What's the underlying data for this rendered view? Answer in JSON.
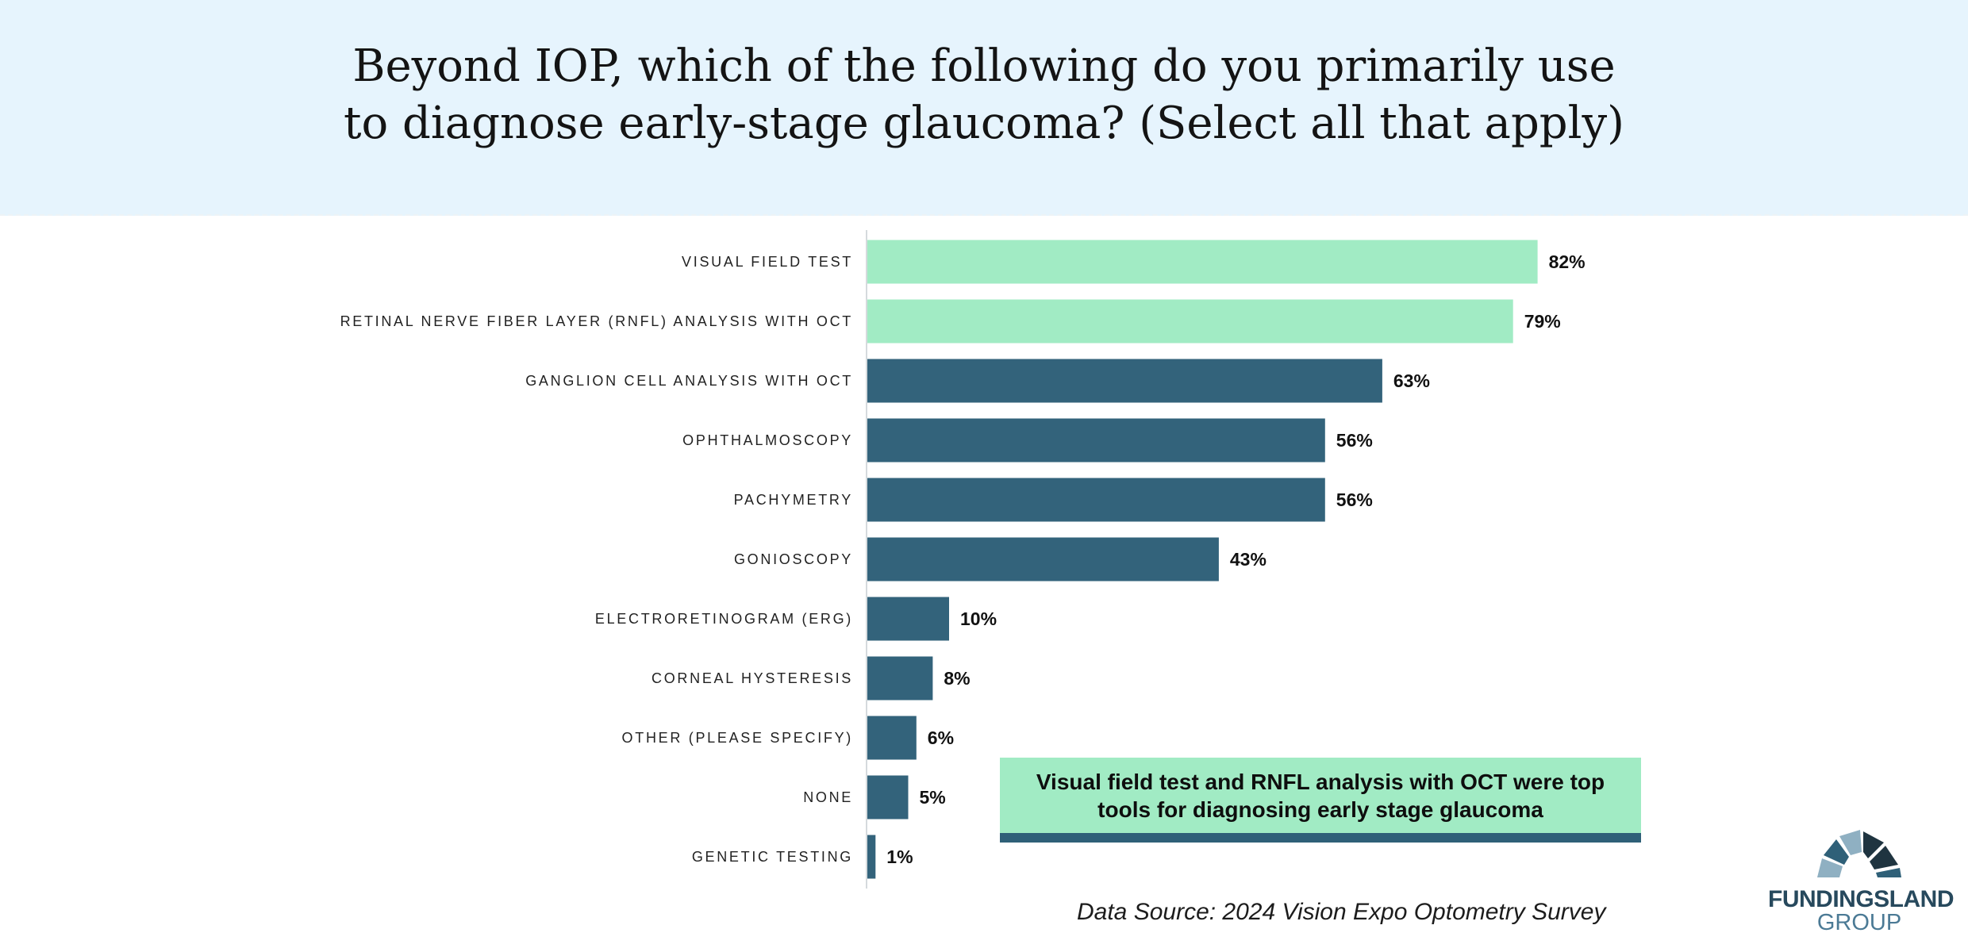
{
  "header": {
    "title_line1": "Beyond IOP, which of the following do you primarily use",
    "title_line2": "to diagnose early-stage glaucoma? (Select all that apply)"
  },
  "chart_data": {
    "type": "bar",
    "orientation": "horizontal",
    "categories": [
      "VISUAL FIELD TEST",
      "RETINAL NERVE FIBER LAYER (RNFL) ANALYSIS WITH OCT",
      "GANGLION CELL ANALYSIS WITH OCT",
      "OPHTHALMOSCOPY",
      "PACHYMETRY",
      "GONIOSCOPY",
      "ELECTRORETINOGRAM (ERG)",
      "CORNEAL HYSTERESIS",
      "OTHER (PLEASE SPECIFY)",
      "NONE",
      "GENETIC TESTING"
    ],
    "values": [
      82,
      79,
      63,
      56,
      56,
      43,
      10,
      8,
      6,
      5,
      1
    ],
    "value_labels": [
      "82%",
      "79%",
      "63%",
      "56%",
      "56%",
      "43%",
      "10%",
      "8%",
      "6%",
      "5%",
      "1%"
    ],
    "highlighted": [
      true,
      true,
      false,
      false,
      false,
      false,
      false,
      false,
      false,
      false,
      false
    ],
    "xlim": [
      0,
      100
    ],
    "grid": false,
    "legend": "none",
    "colors": {
      "highlight": "#a1ebc4",
      "default": "#33637b",
      "axis": "#d5dadd"
    }
  },
  "callout": {
    "text": "Visual field test and RNFL analysis with OCT were top tools for diagnosing early stage glaucoma",
    "colors": {
      "fill": "#a1ebc4",
      "underline": "#2f6078"
    }
  },
  "source": {
    "text": "Data Source: 2024 Vision Expo Optometry Survey"
  },
  "logo": {
    "line1": "FUNDINGSLAND",
    "line2": "GROUP",
    "colors": {
      "dark": "#1f3440",
      "mid": "#2f6078",
      "light": "#8fb0c2"
    }
  }
}
